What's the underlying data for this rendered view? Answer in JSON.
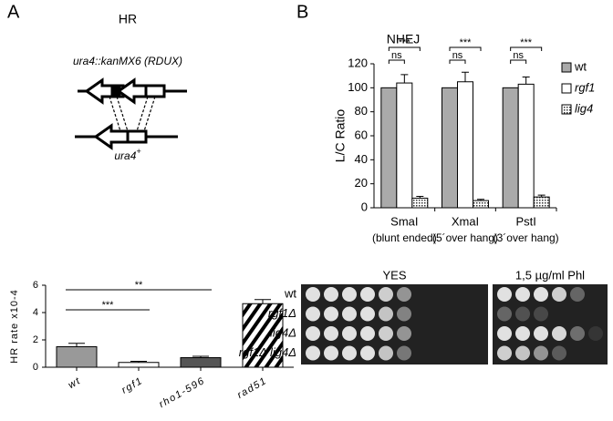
{
  "panel_labels": [
    "A",
    "B"
  ],
  "diagram": {
    "construct": "ura4::kanMX6 (RDUX)",
    "product": "ura4",
    "product_sup": "+"
  },
  "chart_data": [
    {
      "type": "bar",
      "title": "HR",
      "ylabel": "HR rate x10-4",
      "categories": [
        "wt",
        "rgf1",
        "rho1-596",
        "rad51"
      ],
      "values": [
        1.5,
        0.35,
        0.7,
        4.65
      ],
      "errors": [
        0.25,
        0.08,
        0.1,
        0.3
      ],
      "colors": [
        "#999999",
        "#ffffff",
        "#555555",
        "#ffffff"
      ],
      "hatched": [
        false,
        false,
        false,
        true
      ],
      "ylim": [
        0,
        6
      ],
      "yticks": [
        0,
        2,
        4,
        6
      ],
      "grid": false,
      "annotations": [
        {
          "text": "***",
          "from": "wt",
          "to": "rgf1"
        },
        {
          "text": "**",
          "from": "wt",
          "to": "rho1-596"
        }
      ]
    },
    {
      "type": "grouped_bar",
      "title": "NHEJ",
      "ylabel": "L/C Ratio",
      "categories": [
        "SmaI",
        "XmaI",
        "PstI"
      ],
      "category_notes": [
        "(blunt ended)",
        "(5´over hang)",
        "(3´over hang)"
      ],
      "series": [
        {
          "name": "wt",
          "color": "#aaaaaa",
          "pattern": "none",
          "values": [
            100,
            100,
            100
          ],
          "errors": [
            0,
            0,
            0
          ]
        },
        {
          "name": "rgf1",
          "color": "#ffffff",
          "pattern": "none",
          "values": [
            104,
            105,
            103
          ],
          "errors": [
            7,
            8,
            6
          ]
        },
        {
          "name": "lig4",
          "color": "#ffffff",
          "pattern": "dots",
          "values": [
            8,
            6,
            9
          ],
          "errors": [
            1.5,
            1,
            1.5
          ]
        }
      ],
      "significance": [
        [
          "***",
          "ns"
        ],
        [
          "***",
          "ns"
        ],
        [
          "***",
          "ns"
        ]
      ],
      "ylim": [
        0,
        120
      ],
      "yticks": [
        0,
        20,
        40,
        60,
        80,
        100,
        120
      ],
      "grid": false,
      "legend": "right"
    }
  ],
  "spot_assay": {
    "conditions": [
      "YES",
      "1,5 µg/ml Phl"
    ],
    "strains": [
      "wt",
      "rgf1Δ",
      "lig4Δ",
      "rgf1Δ lig4Δ"
    ]
  }
}
